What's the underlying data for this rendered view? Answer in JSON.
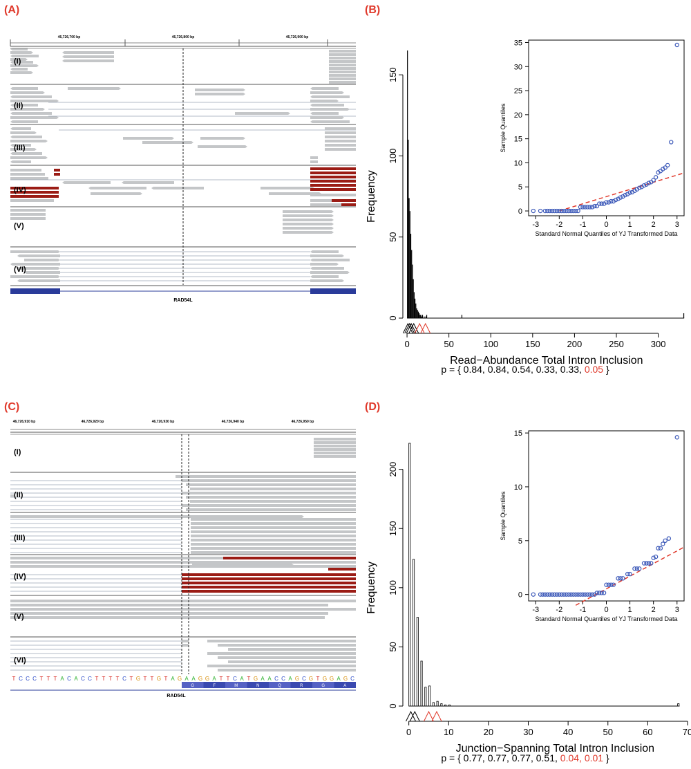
{
  "panels": {
    "A": {
      "label": "(A)",
      "coord_ticks": [
        "46,726,700 bp",
        "46,726,800 bp",
        "46,726,900 bp"
      ],
      "groups": [
        "(I)",
        "(II)",
        "(III)",
        "(IV)",
        "(V)",
        "(VI)"
      ],
      "gene_name": "RAD54L"
    },
    "B": {
      "label": "(B)",
      "p_prefix": "p = { ",
      "p_sep": ", ",
      "p_suffix": " }",
      "p_values": [
        {
          "text": "0.84",
          "color": "#000000"
        },
        {
          "text": "0.84",
          "color": "#000000"
        },
        {
          "text": "0.54",
          "color": "#000000"
        },
        {
          "text": "0.33",
          "color": "#000000"
        },
        {
          "text": "0.33",
          "color": "#000000"
        },
        {
          "text": "0.05",
          "color": "#e0392b"
        }
      ]
    },
    "C": {
      "label": "(C)",
      "coord_ticks": [
        "46,726,910 bp",
        "46,726,920 bp",
        "46,726,930 bp",
        "46,726,940 bp",
        "46,726,950 bp"
      ],
      "groups": [
        "(I)",
        "(II)",
        "(III)",
        "(IV)",
        "(V)",
        "(VI)"
      ],
      "sequence": "TCCCTTTACACCTTTTCTGTTGTAGAAGGATTCATGAACCAGCGTGGAGC",
      "amino_acids": [
        "G",
        "F",
        "M",
        "N",
        "Q",
        "R",
        "G",
        "A"
      ],
      "gene_name": "RAD54L"
    },
    "D": {
      "label": "(D)",
      "p_prefix": "p = { ",
      "p_sep": ", ",
      "p_suffix": " }",
      "p_values": [
        {
          "text": "0.77",
          "color": "#000000"
        },
        {
          "text": "0.77",
          "color": "#000000"
        },
        {
          "text": "0.77",
          "color": "#000000"
        },
        {
          "text": "0.51",
          "color": "#000000"
        },
        {
          "text": "0.04",
          "color": "#e0392b"
        },
        {
          "text": "0.01",
          "color": "#e0392b"
        }
      ]
    }
  },
  "colors": {
    "accent": "#e0392b",
    "read_gray": "#c4c6c8",
    "read_red": "#9b1c15",
    "gene_blue": "#2a3b9a",
    "qq_point": "#3a57b8",
    "qq_line": "#e0392b"
  },
  "chart_data": [
    {
      "id": "B-hist",
      "type": "bar",
      "style": "filled",
      "xlabel": "Read−Abundance Total Intron Inclusion",
      "ylabel": "Frequency",
      "xlim": [
        -5,
        335
      ],
      "ylim": [
        0,
        165
      ],
      "xticks": [
        0,
        50,
        100,
        150,
        200,
        250,
        300
      ],
      "yticks": [
        0,
        50,
        100,
        150
      ],
      "bin_width": 1,
      "bins": [
        [
          0,
          165
        ],
        [
          1,
          110
        ],
        [
          2,
          74
        ],
        [
          3,
          66
        ],
        [
          4,
          52
        ],
        [
          5,
          42
        ],
        [
          6,
          33
        ],
        [
          7,
          24
        ],
        [
          8,
          16
        ],
        [
          9,
          12
        ],
        [
          10,
          9
        ],
        [
          11,
          6
        ],
        [
          12,
          5
        ],
        [
          13,
          4
        ],
        [
          14,
          3
        ],
        [
          15,
          2
        ],
        [
          16,
          2
        ],
        [
          17,
          1
        ],
        [
          18,
          2
        ],
        [
          20,
          1
        ],
        [
          22,
          1
        ],
        [
          23,
          2
        ],
        [
          65,
          2
        ],
        [
          330,
          3
        ]
      ],
      "markers_black": [
        1,
        3,
        5,
        8
      ],
      "markers_red": [
        15,
        22
      ]
    },
    {
      "id": "B-qq",
      "type": "scatter",
      "xlabel": "Standard Normal Quantiles of YJ Transformed Data",
      "ylabel": "Sample Quantiles",
      "xlim": [
        -3.3,
        3.3
      ],
      "ylim": [
        -1,
        35.5
      ],
      "xticks": [
        -3,
        -2,
        -1,
        0,
        1,
        2,
        3
      ],
      "yticks": [
        0,
        5,
        10,
        15,
        20,
        25,
        30,
        35
      ],
      "line": [
        [
          -2.0,
          0
        ],
        [
          3.3,
          7.9
        ]
      ],
      "points": [
        [
          -3.1,
          0
        ],
        [
          -2.8,
          0
        ],
        [
          -2.6,
          0
        ],
        [
          -2.5,
          0
        ],
        [
          -2.4,
          0
        ],
        [
          -2.3,
          0
        ],
        [
          -2.2,
          0
        ],
        [
          -2.1,
          0
        ],
        [
          -2.0,
          0
        ],
        [
          -1.9,
          0
        ],
        [
          -1.8,
          0
        ],
        [
          -1.7,
          0
        ],
        [
          -1.6,
          0
        ],
        [
          -1.5,
          0
        ],
        [
          -1.4,
          0
        ],
        [
          -1.3,
          0
        ],
        [
          -1.2,
          0
        ],
        [
          -1.1,
          0.8
        ],
        [
          -1.0,
          0.8
        ],
        [
          -0.9,
          0.8
        ],
        [
          -0.8,
          0.8
        ],
        [
          -0.7,
          0.8
        ],
        [
          -0.6,
          0.8
        ],
        [
          -0.5,
          1.0
        ],
        [
          -0.4,
          1.0
        ],
        [
          -0.3,
          1.5
        ],
        [
          -0.2,
          1.5
        ],
        [
          -0.1,
          1.5
        ],
        [
          0.0,
          1.8
        ],
        [
          0.1,
          1.8
        ],
        [
          0.2,
          2.0
        ],
        [
          0.3,
          2.0
        ],
        [
          0.4,
          2.3
        ],
        [
          0.5,
          2.5
        ],
        [
          0.6,
          2.8
        ],
        [
          0.7,
          3.0
        ],
        [
          0.8,
          3.3
        ],
        [
          0.9,
          3.5
        ],
        [
          1.0,
          3.8
        ],
        [
          1.1,
          3.9
        ],
        [
          1.2,
          4.2
        ],
        [
          1.3,
          4.5
        ],
        [
          1.4,
          4.8
        ],
        [
          1.5,
          5.0
        ],
        [
          1.6,
          5.3
        ],
        [
          1.7,
          5.5
        ],
        [
          1.8,
          5.8
        ],
        [
          1.9,
          6.0
        ],
        [
          2.0,
          6.4
        ],
        [
          2.1,
          7.0
        ],
        [
          2.2,
          8.0
        ],
        [
          2.3,
          8.3
        ],
        [
          2.4,
          8.7
        ],
        [
          2.5,
          9.0
        ],
        [
          2.6,
          9.5
        ],
        [
          2.75,
          14.3
        ],
        [
          3.0,
          34.5
        ]
      ]
    },
    {
      "id": "D-hist",
      "type": "bar",
      "style": "outline",
      "xlabel": "Junction−Spanning Total Intron Inclusion",
      "ylabel": "Frequency",
      "xlim": [
        -1.5,
        70
      ],
      "ylim": [
        0,
        222
      ],
      "xticks": [
        0,
        10,
        20,
        30,
        40,
        50,
        60,
        70
      ],
      "yticks": [
        0,
        50,
        100,
        150,
        200
      ],
      "bin_width": 0.5,
      "bins": [
        [
          0,
          222
        ],
        [
          0.5,
          0
        ],
        [
          1,
          124
        ],
        [
          1.5,
          0
        ],
        [
          2,
          75
        ],
        [
          2.5,
          0
        ],
        [
          3,
          38
        ],
        [
          3.5,
          0
        ],
        [
          4,
          16
        ],
        [
          4.5,
          0
        ],
        [
          5,
          17
        ],
        [
          5.5,
          0
        ],
        [
          6,
          3
        ],
        [
          6.5,
          0
        ],
        [
          7,
          4
        ],
        [
          7.5,
          0
        ],
        [
          8,
          2
        ],
        [
          8.5,
          0
        ],
        [
          9,
          1
        ],
        [
          10,
          1
        ],
        [
          67.5,
          2
        ]
      ],
      "markers_black": [
        0.5,
        1.5
      ],
      "markers_red": [
        5,
        7
      ]
    },
    {
      "id": "D-qq",
      "type": "scatter",
      "xlabel": "Standard Normal Quantiles of YJ Transformed Data",
      "ylabel": "Sample Quantiles",
      "xlim": [
        -3.3,
        3.3
      ],
      "ylim": [
        -0.6,
        15.2
      ],
      "xticks": [
        -3,
        -2,
        -1,
        0,
        1,
        2,
        3
      ],
      "yticks": [
        0,
        5,
        10,
        15
      ],
      "line": [
        [
          -1.3,
          -1.0
        ],
        [
          3.3,
          4.4
        ]
      ],
      "points": [
        [
          -3.1,
          0
        ],
        [
          -2.8,
          0
        ],
        [
          -2.7,
          0
        ],
        [
          -2.6,
          0
        ],
        [
          -2.5,
          0
        ],
        [
          -2.4,
          0
        ],
        [
          -2.3,
          0
        ],
        [
          -2.2,
          0
        ],
        [
          -2.1,
          0
        ],
        [
          -2.0,
          0
        ],
        [
          -1.9,
          0
        ],
        [
          -1.8,
          0
        ],
        [
          -1.7,
          0
        ],
        [
          -1.6,
          0
        ],
        [
          -1.5,
          0
        ],
        [
          -1.4,
          0
        ],
        [
          -1.3,
          0
        ],
        [
          -1.2,
          0
        ],
        [
          -1.1,
          0
        ],
        [
          -1.0,
          0
        ],
        [
          -0.9,
          0
        ],
        [
          -0.8,
          0
        ],
        [
          -0.7,
          0
        ],
        [
          -0.6,
          0
        ],
        [
          -0.5,
          0
        ],
        [
          -0.4,
          0.15
        ],
        [
          -0.3,
          0.15
        ],
        [
          -0.2,
          0.15
        ],
        [
          -0.1,
          0.15
        ],
        [
          0.0,
          0.9
        ],
        [
          0.1,
          0.9
        ],
        [
          0.2,
          0.9
        ],
        [
          0.3,
          0.9
        ],
        [
          0.5,
          1.5
        ],
        [
          0.6,
          1.5
        ],
        [
          0.7,
          1.5
        ],
        [
          0.9,
          1.9
        ],
        [
          1.0,
          1.9
        ],
        [
          1.2,
          2.4
        ],
        [
          1.3,
          2.4
        ],
        [
          1.4,
          2.4
        ],
        [
          1.6,
          2.9
        ],
        [
          1.7,
          2.9
        ],
        [
          1.8,
          2.9
        ],
        [
          1.9,
          2.9
        ],
        [
          2.0,
          3.4
        ],
        [
          2.1,
          3.5
        ],
        [
          2.2,
          4.3
        ],
        [
          2.3,
          4.3
        ],
        [
          2.4,
          4.7
        ],
        [
          2.5,
          5.0
        ],
        [
          2.65,
          5.2
        ],
        [
          3.0,
          14.6
        ]
      ]
    }
  ]
}
